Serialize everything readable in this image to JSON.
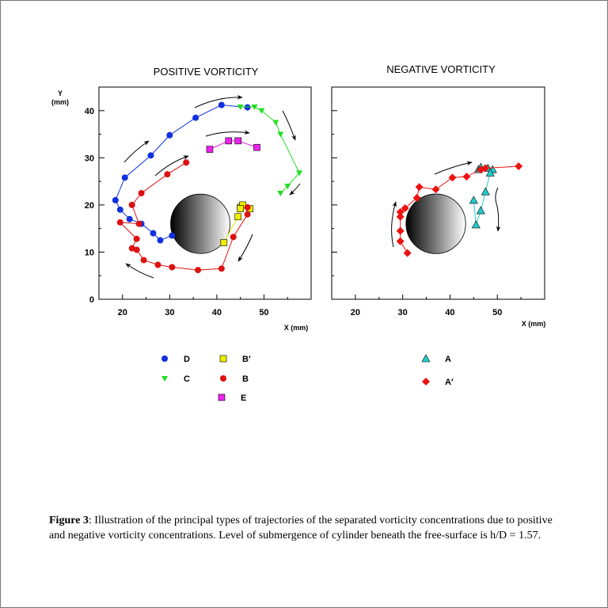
{
  "figure": {
    "panels": {
      "left": {
        "title": "POSITIVE VORTICITY",
        "ylabel_top": "Y",
        "ylabel_unit": "(mm)",
        "xlabel": "X (mm)"
      },
      "right": {
        "title": "NEGATIVE VORTICITY",
        "xlabel": "X (mm)"
      }
    },
    "caption": {
      "label": "Figure 3",
      "text": ":  Illustration of the principal types of trajectories of the separated vorticity concentrations due to positive and negative vorticity concentrations. Level of submergence of cylinder beneath the free-surface is h/D = 1.57."
    }
  },
  "chart_data": [
    {
      "type": "scatter",
      "title": "POSITIVE VORTICITY",
      "xlabel": "X (mm)",
      "ylabel": "Y (mm)",
      "xlim": [
        15,
        60
      ],
      "ylim": [
        0,
        45
      ],
      "xticks": [
        20,
        30,
        40,
        50
      ],
      "yticks": [
        0,
        10,
        20,
        30,
        40
      ],
      "cylinder": {
        "center": [
          36.5,
          16
        ],
        "radius": 6.3
      },
      "series": [
        {
          "name": "D",
          "marker": "circle",
          "color": "#1030e0",
          "x": [
            30.5,
            28,
            26.5,
            24,
            21.5,
            19.5,
            18.5,
            20.5,
            26,
            30,
            35.5,
            41,
            46.5
          ],
          "y": [
            13.5,
            12.5,
            14,
            16,
            17,
            19,
            21,
            25.8,
            30.5,
            34.8,
            38.5,
            41.2,
            40.7
          ]
        },
        {
          "name": "C",
          "marker": "triangle-down",
          "color": "#22dd22",
          "x": [
            45,
            48,
            49.5,
            52.5,
            53.5,
            57.5,
            55,
            53.5
          ],
          "y": [
            40.8,
            40.8,
            40,
            37.5,
            35,
            26.8,
            24,
            22.5
          ]
        },
        {
          "name": "B′",
          "marker": "square",
          "color": "#eeee00",
          "x": [
            41.5,
            44.5,
            45,
            45.5,
            45,
            47
          ],
          "y": [
            12,
            17.5,
            19.5,
            20,
            19.2,
            19.2
          ]
        },
        {
          "name": "B",
          "marker": "circle",
          "color": "#dd1111",
          "x": [
            33.5,
            29.5,
            24,
            22,
            23.5,
            19.5,
            23,
            22,
            23,
            24.5,
            27.5,
            30.5,
            36,
            41,
            43.5,
            46.5,
            46.5
          ],
          "y": [
            29,
            26.5,
            22.5,
            20,
            16,
            16.3,
            12.8,
            10.8,
            10.5,
            8.3,
            7.3,
            6.8,
            6.2,
            6.5,
            13.2,
            18,
            19.5
          ]
        },
        {
          "name": "E",
          "marker": "square",
          "color": "#ee22ee",
          "x": [
            38.5,
            42.5,
            44.5,
            48.5
          ],
          "y": [
            31.8,
            33.6,
            33.6,
            32.2
          ]
        }
      ],
      "legend": [
        {
          "label": "D",
          "series": "D"
        },
        {
          "label": "C",
          "series": "C"
        },
        {
          "label": "B′",
          "series": "B′"
        },
        {
          "label": "B",
          "series": "B"
        },
        {
          "label": "E",
          "series": "E"
        }
      ]
    },
    {
      "type": "scatter",
      "title": "NEGATIVE VORTICITY",
      "xlabel": "X (mm)",
      "ylabel": "",
      "xlim": [
        15,
        60
      ],
      "ylim": [
        0,
        45
      ],
      "xticks": [
        20,
        30,
        40,
        50
      ],
      "yticks": [],
      "cylinder": {
        "center": [
          37,
          16
        ],
        "radius": 6.3
      },
      "series": [
        {
          "name": "A",
          "marker": "triangle-up",
          "color": "#22cccc",
          "x": [
            46,
            46.5,
            48,
            49,
            48.5,
            47.5,
            46.5,
            45.5,
            45
          ],
          "y": [
            27.5,
            28,
            27.8,
            27.5,
            26.8,
            22.8,
            18.8,
            15.8,
            21
          ]
        },
        {
          "name": "A′",
          "marker": "diamond",
          "color": "#ee1111",
          "x": [
            31,
            29.5,
            29.5,
            29.5,
            29.5,
            30.5,
            33,
            33.5,
            37,
            40.5,
            43.5,
            46.5,
            47.5,
            54.5
          ],
          "y": [
            9.8,
            12.3,
            14.5,
            17.5,
            18.5,
            19.3,
            21.5,
            23.8,
            23.3,
            25.8,
            26,
            27.5,
            27.8,
            28.2
          ]
        }
      ],
      "legend": [
        {
          "label": "A",
          "series": "A"
        },
        {
          "label": "A′",
          "series": "A′"
        }
      ]
    }
  ]
}
